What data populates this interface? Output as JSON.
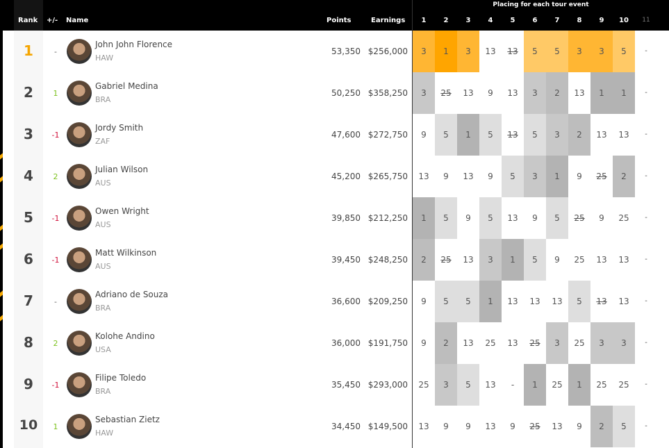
{
  "header": {
    "rank": "Rank",
    "change": "+/-",
    "name": "Name",
    "points": "Points",
    "earnings": "Earnings",
    "placing_title": "Placing for each tour event",
    "events": [
      "1",
      "2",
      "3",
      "4",
      "5",
      "6",
      "7",
      "8",
      "9",
      "10",
      "11"
    ]
  },
  "colors": {
    "leader_1": "#ffa500",
    "leader_3": "#ffb633",
    "leader_5": "#ffc966",
    "gray_1": "#b3b3b3",
    "gray_2": "#bdbdbd",
    "gray_3": "#c8c8c8",
    "gray_5": "#dedede",
    "up": "#7dc21e",
    "down": "#d0103a",
    "rank1": "#f5a500"
  },
  "rows": [
    {
      "rank": "1",
      "change": "-",
      "name": "John John Florence",
      "nation": "HAW",
      "points": "53,350",
      "earnings": "$256,000",
      "placings": [
        "3",
        "1",
        "3",
        "13",
        "13",
        "5",
        "5",
        "3",
        "3",
        "5",
        "-"
      ],
      "discarded": 4
    },
    {
      "rank": "2",
      "change": "1",
      "name": "Gabriel Medina",
      "nation": "BRA",
      "points": "50,250",
      "earnings": "$358,250",
      "placings": [
        "3",
        "25",
        "13",
        "9",
        "13",
        "3",
        "2",
        "13",
        "1",
        "1",
        "-"
      ],
      "discarded": 1
    },
    {
      "rank": "3",
      "change": "-1",
      "name": "Jordy Smith",
      "nation": "ZAF",
      "points": "47,600",
      "earnings": "$272,750",
      "placings": [
        "9",
        "5",
        "1",
        "5",
        "13",
        "5",
        "3",
        "2",
        "13",
        "13",
        "-"
      ],
      "discarded": 4
    },
    {
      "rank": "4",
      "change": "2",
      "name": "Julian Wilson",
      "nation": "AUS",
      "points": "45,200",
      "earnings": "$265,750",
      "placings": [
        "13",
        "9",
        "13",
        "9",
        "5",
        "3",
        "1",
        "9",
        "25",
        "2",
        "-"
      ],
      "discarded": 8
    },
    {
      "rank": "5",
      "change": "-1",
      "name": "Owen Wright",
      "nation": "AUS",
      "points": "39,850",
      "earnings": "$212,250",
      "placings": [
        "1",
        "5",
        "9",
        "5",
        "13",
        "9",
        "5",
        "25",
        "9",
        "25",
        "-"
      ],
      "discarded": 7
    },
    {
      "rank": "6",
      "change": "-1",
      "name": "Matt Wilkinson",
      "nation": "AUS",
      "points": "39,450",
      "earnings": "$248,250",
      "placings": [
        "2",
        "25",
        "13",
        "3",
        "1",
        "5",
        "9",
        "25",
        "13",
        "13",
        "-"
      ],
      "discarded": 1
    },
    {
      "rank": "7",
      "change": "-",
      "name": "Adriano de Souza",
      "nation": "BRA",
      "points": "36,600",
      "earnings": "$209,250",
      "placings": [
        "9",
        "5",
        "5",
        "1",
        "13",
        "13",
        "13",
        "5",
        "13",
        "13",
        "-"
      ],
      "discarded": 8
    },
    {
      "rank": "8",
      "change": "2",
      "name": "Kolohe Andino",
      "nation": "USA",
      "points": "36,000",
      "earnings": "$191,750",
      "placings": [
        "9",
        "2",
        "13",
        "25",
        "13",
        "25",
        "3",
        "25",
        "3",
        "3",
        "-"
      ],
      "discarded": 5
    },
    {
      "rank": "9",
      "change": "-1",
      "name": "Filipe Toledo",
      "nation": "BRA",
      "points": "35,450",
      "earnings": "$293,000",
      "placings": [
        "25",
        "3",
        "5",
        "13",
        "-",
        "1",
        "25",
        "1",
        "25",
        "25",
        "-"
      ],
      "discarded": -1
    },
    {
      "rank": "10",
      "change": "1",
      "name": "Sebastian Zietz",
      "nation": "HAW",
      "points": "34,450",
      "earnings": "$149,500",
      "placings": [
        "13",
        "9",
        "9",
        "13",
        "9",
        "25",
        "13",
        "9",
        "2",
        "5",
        "-"
      ],
      "discarded": 5
    }
  ]
}
